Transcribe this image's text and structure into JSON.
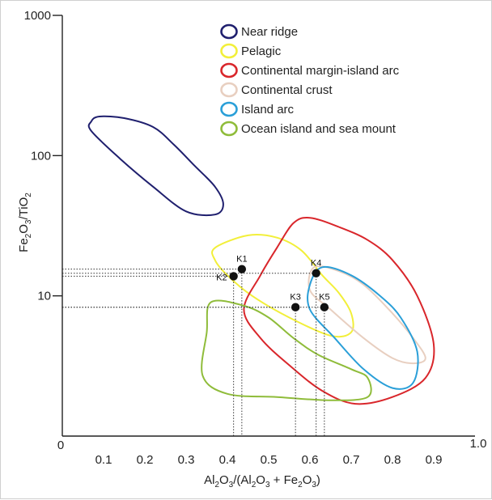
{
  "chart_data": {
    "type": "scatter",
    "x_axis": {
      "label_parts": [
        "Al",
        "2",
        "O",
        "3",
        "/(Al",
        "2",
        "O",
        "3",
        " + Fe",
        "2",
        "O",
        "3",
        ")"
      ],
      "range": [
        0,
        1.0
      ],
      "tick_labels": [
        "0",
        "0.1",
        "0.2",
        "0.3",
        "0.4",
        "0.5",
        "0.6",
        "0.7",
        "0.8",
        "0.9",
        "1.0"
      ],
      "ticks": [
        0,
        0.1,
        0.2,
        0.3,
        0.4,
        0.5,
        0.6,
        0.7,
        0.8,
        0.9,
        1.0
      ]
    },
    "y_axis": {
      "label_parts": [
        "Fe",
        "2",
        "O",
        "3",
        "/TiO",
        "2"
      ],
      "scale": "log",
      "range": [
        1,
        1000
      ],
      "tick_labels": [
        "10",
        "100",
        "1000"
      ],
      "ticks": [
        10,
        100,
        1000
      ]
    },
    "legend": {
      "placement": "top-right",
      "entries": [
        {
          "label": "Near ridge",
          "color": "#1f1f6e"
        },
        {
          "label": "Pelagic",
          "color": "#f2ef3a"
        },
        {
          "label": "Continental margin-island arc",
          "color": "#d9262b"
        },
        {
          "label": "Continental crust",
          "color": "#e8cfc0"
        },
        {
          "label": "Island arc",
          "color": "#2a9fd8"
        },
        {
          "label": "Ocean island and sea mount",
          "color": "#8fbc3a"
        }
      ]
    },
    "fields": [
      {
        "name": "Near ridge",
        "color": "#1f1f6e",
        "points": [
          [
            0.09,
            190
          ],
          [
            0.15,
            185
          ],
          [
            0.22,
            160
          ],
          [
            0.27,
            120
          ],
          [
            0.32,
            85
          ],
          [
            0.37,
            60
          ],
          [
            0.39,
            45
          ],
          [
            0.37,
            38
          ],
          [
            0.3,
            40
          ],
          [
            0.22,
            60
          ],
          [
            0.14,
            95
          ],
          [
            0.07,
            150
          ],
          [
            0.07,
            175
          ]
        ]
      },
      {
        "name": "Pelagic",
        "color": "#f2ef3a",
        "points": [
          [
            0.37,
            22
          ],
          [
            0.45,
            27
          ],
          [
            0.52,
            26
          ],
          [
            0.58,
            21
          ],
          [
            0.63,
            14
          ],
          [
            0.67,
            10.5
          ],
          [
            0.7,
            7.5
          ],
          [
            0.7,
            5.5
          ],
          [
            0.65,
            5.2
          ],
          [
            0.55,
            7
          ],
          [
            0.46,
            10
          ],
          [
            0.4,
            14
          ],
          [
            0.37,
            18
          ]
        ]
      },
      {
        "name": "Continental margin-island arc",
        "color": "#d9262b",
        "points": [
          [
            0.56,
            33
          ],
          [
            0.6,
            36
          ],
          [
            0.67,
            31
          ],
          [
            0.74,
            25
          ],
          [
            0.8,
            18
          ],
          [
            0.86,
            10
          ],
          [
            0.9,
            4.5
          ],
          [
            0.88,
            2.6
          ],
          [
            0.8,
            1.9
          ],
          [
            0.71,
            1.7
          ],
          [
            0.63,
            2.1
          ],
          [
            0.55,
            3.2
          ],
          [
            0.48,
            5
          ],
          [
            0.44,
            8
          ],
          [
            0.48,
            14
          ],
          [
            0.52,
            22
          ]
        ]
      },
      {
        "name": "Continental crust",
        "color": "#e8cfc0",
        "points": [
          [
            0.61,
            16
          ],
          [
            0.67,
            15
          ],
          [
            0.73,
            12
          ],
          [
            0.8,
            7.5
          ],
          [
            0.85,
            5
          ],
          [
            0.88,
            3.6
          ],
          [
            0.85,
            3.3
          ],
          [
            0.8,
            3.6
          ],
          [
            0.73,
            5
          ],
          [
            0.65,
            8
          ],
          [
            0.6,
            11
          ]
        ]
      },
      {
        "name": "Island arc",
        "color": "#2a9fd8",
        "points": [
          [
            0.63,
            16
          ],
          [
            0.7,
            14
          ],
          [
            0.77,
            10
          ],
          [
            0.82,
            7
          ],
          [
            0.86,
            4
          ],
          [
            0.85,
            2.4
          ],
          [
            0.8,
            2.2
          ],
          [
            0.73,
            3
          ],
          [
            0.66,
            5
          ],
          [
            0.6,
            8
          ],
          [
            0.6,
            12
          ]
        ]
      },
      {
        "name": "Ocean island and sea mount",
        "color": "#8fbc3a",
        "points": [
          [
            0.36,
            9
          ],
          [
            0.44,
            8.5
          ],
          [
            0.5,
            7
          ],
          [
            0.56,
            5
          ],
          [
            0.62,
            3.8
          ],
          [
            0.7,
            3
          ],
          [
            0.74,
            2.6
          ],
          [
            0.74,
            1.9
          ],
          [
            0.65,
            1.8
          ],
          [
            0.52,
            1.9
          ],
          [
            0.4,
            2.0
          ],
          [
            0.34,
            2.7
          ],
          [
            0.35,
            5.5
          ]
        ]
      }
    ],
    "samples": [
      {
        "label": "K1",
        "x": 0.435,
        "y": 15.5,
        "label_pos": "above"
      },
      {
        "label": "K2",
        "x": 0.415,
        "y": 13.8,
        "label_pos": "left"
      },
      {
        "label": "K3",
        "x": 0.565,
        "y": 8.3,
        "label_pos": "above"
      },
      {
        "label": "K4",
        "x": 0.615,
        "y": 14.5,
        "label_pos": "above"
      },
      {
        "label": "K5",
        "x": 0.635,
        "y": 8.3,
        "label_pos": "above"
      }
    ]
  }
}
